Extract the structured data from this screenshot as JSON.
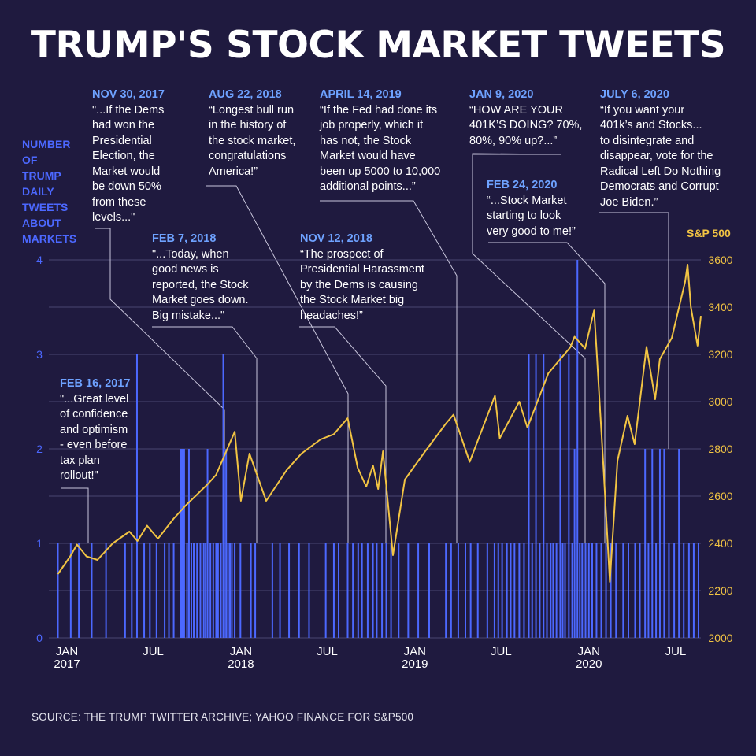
{
  "title": "TRUMP'S STOCK MARKET TWEETS",
  "left_axis_title": "NUMBER\nOF\nTRUMP\nDAILY\nTWEETS\nABOUT\nMARKETS",
  "right_axis_title": "S&P 500",
  "source": "SOURCE: THE TRUMP TWITTER ARCHIVE; YAHOO FINANCE FOR S&P500",
  "colors": {
    "background": "#1f1a3f",
    "tweets": "#4c68ff",
    "sp500": "#f2c443",
    "date": "#6ea2ff",
    "grid": "#4a4670"
  },
  "annotations": [
    {
      "date": "FEB 16, 2017",
      "quote": "\"...Great level\nof confidence\nand optimism\n- even before\ntax plan\nrollout!\""
    },
    {
      "date": "NOV 30, 2017",
      "quote": "\"...If the Dems\nhad won the\nPresidential\nElection, the\nMarket would\nbe down 50%\nfrom these\nlevels...\""
    },
    {
      "date": "FEB 7, 2018",
      "quote": "\"...Today, when\ngood news is\nreported, the Stock\nMarket goes down.\nBig mistake...\""
    },
    {
      "date": "AUG 22, 2018",
      "quote": "“Longest bull run\nin the history of\nthe stock market,\ncongratulations\nAmerica!”"
    },
    {
      "date": "NOV 12, 2018",
      "quote": "“The prospect of\nPresidential Harassment\nby the Dems is causing\nthe Stock Market big\nheadaches!”"
    },
    {
      "date": "APRIL 14, 2019",
      "quote": "“If the Fed had done its\njob properly, which it\nhas not, the Stock\nMarket would have\nbeen up 5000 to 10,000\nadditional points...”"
    },
    {
      "date": "JAN 9, 2020",
      "quote": "“HOW ARE YOUR\n401K’S DOING? 70%,\n80%, 90% up?...”"
    },
    {
      "date": "FEB 24, 2020",
      "quote": "“...Stock Market\nstarting to look\nvery good to me!”"
    },
    {
      "date": "JULY 6, 2020",
      "quote": "“If you want your\n401k’s and Stocks...\nto disintegrate and\ndisappear, vote for the\nRadical Left Do Nothing\nDemocrats and Corrupt\nJoe Biden.”"
    }
  ],
  "chart_data": {
    "type": "line",
    "x_ticks": [
      {
        "label": "JAN\n2017",
        "date": "2017-01-01"
      },
      {
        "label": "JUL",
        "date": "2017-07-01"
      },
      {
        "label": "JAN\n2018",
        "date": "2018-01-01"
      },
      {
        "label": "JUL",
        "date": "2018-07-01"
      },
      {
        "label": "JAN\n2019",
        "date": "2019-01-01"
      },
      {
        "label": "JUL",
        "date": "2019-07-01"
      },
      {
        "label": "JAN\n2020",
        "date": "2020-01-01"
      },
      {
        "label": "JUL",
        "date": "2020-07-01"
      }
    ],
    "x_range": [
      "2017-01-01",
      "2020-09-30"
    ],
    "left_axis": {
      "label": "NUMBER OF TRUMP DAILY TWEETS ABOUT MARKETS",
      "ticks": [
        0,
        1,
        2,
        3,
        4
      ],
      "ylim": [
        0,
        4
      ]
    },
    "right_axis": {
      "label": "S&P 500",
      "ticks": [
        2000,
        2200,
        2400,
        2600,
        2800,
        3000,
        3200,
        3400,
        3600
      ],
      "ylim": [
        2000,
        3600
      ]
    },
    "grid": true,
    "series": [
      {
        "name": "S&P 500",
        "axis": "right",
        "points": [
          [
            "2017-01-20",
            2270
          ],
          [
            "2017-02-15",
            2345
          ],
          [
            "2017-03-01",
            2395
          ],
          [
            "2017-03-21",
            2345
          ],
          [
            "2017-04-13",
            2330
          ],
          [
            "2017-05-15",
            2400
          ],
          [
            "2017-06-19",
            2450
          ],
          [
            "2017-07-06",
            2410
          ],
          [
            "2017-07-26",
            2475
          ],
          [
            "2017-08-18",
            2420
          ],
          [
            "2017-09-20",
            2505
          ],
          [
            "2017-10-15",
            2560
          ],
          [
            "2017-11-30",
            2650
          ],
          [
            "2017-12-18",
            2690
          ],
          [
            "2018-01-26",
            2873
          ],
          [
            "2018-02-08",
            2580
          ],
          [
            "2018-02-26",
            2780
          ],
          [
            "2018-04-02",
            2580
          ],
          [
            "2018-05-15",
            2710
          ],
          [
            "2018-06-15",
            2780
          ],
          [
            "2018-07-25",
            2840
          ],
          [
            "2018-08-22",
            2862
          ],
          [
            "2018-09-20",
            2930
          ],
          [
            "2018-10-11",
            2720
          ],
          [
            "2018-10-29",
            2640
          ],
          [
            "2018-11-12",
            2730
          ],
          [
            "2018-11-23",
            2630
          ],
          [
            "2018-12-03",
            2790
          ],
          [
            "2018-12-24",
            2350
          ],
          [
            "2019-01-18",
            2670
          ],
          [
            "2019-02-28",
            2785
          ],
          [
            "2019-04-14",
            2907
          ],
          [
            "2019-04-30",
            2945
          ],
          [
            "2019-06-03",
            2745
          ],
          [
            "2019-07-26",
            3025
          ],
          [
            "2019-08-05",
            2845
          ],
          [
            "2019-09-15",
            3000
          ],
          [
            "2019-10-02",
            2890
          ],
          [
            "2019-11-15",
            3120
          ],
          [
            "2019-12-31",
            3230
          ],
          [
            "2020-01-09",
            3275
          ],
          [
            "2020-01-31",
            3225
          ],
          [
            "2020-02-19",
            3386
          ],
          [
            "2020-02-24",
            3225
          ],
          [
            "2020-03-09",
            2746
          ],
          [
            "2020-03-23",
            2237
          ],
          [
            "2020-04-08",
            2750
          ],
          [
            "2020-04-29",
            2940
          ],
          [
            "2020-05-14",
            2820
          ],
          [
            "2020-06-08",
            3232
          ],
          [
            "2020-06-26",
            3010
          ],
          [
            "2020-07-06",
            3180
          ],
          [
            "2020-07-31",
            3270
          ],
          [
            "2020-08-28",
            3508
          ],
          [
            "2020-09-02",
            3580
          ],
          [
            "2020-09-09",
            3400
          ],
          [
            "2020-09-23",
            3237
          ],
          [
            "2020-09-30",
            3363
          ]
        ]
      },
      {
        "name": "NUMBER OF TRUMP DAILY TWEETS ABOUT MARKETS",
        "axis": "left",
        "type": "bar",
        "points": [
          [
            "2017-01-20",
            1
          ],
          [
            "2017-02-16",
            1
          ],
          [
            "2017-03-05",
            1
          ],
          [
            "2017-04-01",
            1
          ],
          [
            "2017-05-01",
            1
          ],
          [
            "2017-06-10",
            1
          ],
          [
            "2017-06-24",
            1
          ],
          [
            "2017-07-05",
            3
          ],
          [
            "2017-07-20",
            1
          ],
          [
            "2017-08-01",
            1
          ],
          [
            "2017-08-15",
            1
          ],
          [
            "2017-09-01",
            1
          ],
          [
            "2017-09-10",
            1
          ],
          [
            "2017-09-20",
            1
          ],
          [
            "2017-10-05",
            2
          ],
          [
            "2017-10-08",
            2
          ],
          [
            "2017-10-12",
            2
          ],
          [
            "2017-10-18",
            1
          ],
          [
            "2017-10-22",
            2
          ],
          [
            "2017-10-27",
            1
          ],
          [
            "2017-11-01",
            1
          ],
          [
            "2017-11-08",
            1
          ],
          [
            "2017-11-15",
            1
          ],
          [
            "2017-11-22",
            1
          ],
          [
            "2017-11-26",
            1
          ],
          [
            "2017-11-30",
            2
          ],
          [
            "2017-12-06",
            1
          ],
          [
            "2017-12-12",
            1
          ],
          [
            "2017-12-18",
            1
          ],
          [
            "2017-12-22",
            1
          ],
          [
            "2017-12-28",
            1
          ],
          [
            "2018-01-02",
            3
          ],
          [
            "2018-01-04",
            2
          ],
          [
            "2018-01-08",
            2
          ],
          [
            "2018-01-12",
            1
          ],
          [
            "2018-01-16",
            1
          ],
          [
            "2018-01-20",
            1
          ],
          [
            "2018-01-26",
            1
          ],
          [
            "2018-02-07",
            1
          ],
          [
            "2018-03-01",
            1
          ],
          [
            "2018-03-10",
            1
          ],
          [
            "2018-04-15",
            1
          ],
          [
            "2018-05-01",
            1
          ],
          [
            "2018-05-20",
            1
          ],
          [
            "2018-06-10",
            1
          ],
          [
            "2018-07-01",
            1
          ],
          [
            "2018-08-05",
            1
          ],
          [
            "2018-08-22",
            1
          ],
          [
            "2018-09-01",
            1
          ],
          [
            "2018-09-20",
            1
          ],
          [
            "2018-10-01",
            1
          ],
          [
            "2018-10-12",
            1
          ],
          [
            "2018-10-20",
            1
          ],
          [
            "2018-11-01",
            1
          ],
          [
            "2018-11-12",
            1
          ],
          [
            "2018-11-20",
            1
          ],
          [
            "2018-12-01",
            1
          ],
          [
            "2018-12-10",
            1
          ],
          [
            "2018-12-20",
            1
          ],
          [
            "2019-01-05",
            1
          ],
          [
            "2019-01-25",
            1
          ],
          [
            "2019-02-15",
            1
          ],
          [
            "2019-03-10",
            1
          ],
          [
            "2019-04-14",
            1
          ],
          [
            "2019-04-25",
            1
          ],
          [
            "2019-05-10",
            1
          ],
          [
            "2019-05-25",
            1
          ],
          [
            "2019-06-05",
            1
          ],
          [
            "2019-06-20",
            1
          ],
          [
            "2019-07-10",
            1
          ],
          [
            "2019-07-25",
            1
          ],
          [
            "2019-08-02",
            1
          ],
          [
            "2019-08-10",
            1
          ],
          [
            "2019-08-20",
            1
          ],
          [
            "2019-08-28",
            1
          ],
          [
            "2019-09-05",
            1
          ],
          [
            "2019-09-15",
            1
          ],
          [
            "2019-09-25",
            1
          ],
          [
            "2019-10-05",
            3
          ],
          [
            "2019-10-12",
            1
          ],
          [
            "2019-10-20",
            3
          ],
          [
            "2019-10-28",
            1
          ],
          [
            "2019-11-05",
            3
          ],
          [
            "2019-11-12",
            1
          ],
          [
            "2019-11-20",
            1
          ],
          [
            "2019-11-25",
            1
          ],
          [
            "2019-12-02",
            1
          ],
          [
            "2019-12-10",
            3
          ],
          [
            "2019-12-15",
            1
          ],
          [
            "2019-12-20",
            1
          ],
          [
            "2019-12-28",
            3
          ],
          [
            "2020-01-04",
            1
          ],
          [
            "2020-01-09",
            2
          ],
          [
            "2020-01-15",
            4
          ],
          [
            "2020-01-20",
            1
          ],
          [
            "2020-01-25",
            1
          ],
          [
            "2020-02-01",
            1
          ],
          [
            "2020-02-08",
            1
          ],
          [
            "2020-02-15",
            1
          ],
          [
            "2020-02-24",
            1
          ],
          [
            "2020-03-05",
            1
          ],
          [
            "2020-03-15",
            1
          ],
          [
            "2020-03-25",
            1
          ],
          [
            "2020-04-05",
            1
          ],
          [
            "2020-04-20",
            1
          ],
          [
            "2020-05-01",
            1
          ],
          [
            "2020-05-15",
            1
          ],
          [
            "2020-05-25",
            1
          ],
          [
            "2020-06-05",
            2
          ],
          [
            "2020-06-12",
            1
          ],
          [
            "2020-06-20",
            2
          ],
          [
            "2020-06-28",
            1
          ],
          [
            "2020-07-06",
            2
          ],
          [
            "2020-07-15",
            2
          ],
          [
            "2020-07-25",
            1
          ],
          [
            "2020-08-05",
            1
          ],
          [
            "2020-08-15",
            2
          ],
          [
            "2020-08-25",
            1
          ],
          [
            "2020-09-05",
            1
          ],
          [
            "2020-09-15",
            1
          ],
          [
            "2020-09-25",
            1
          ]
        ]
      }
    ]
  }
}
